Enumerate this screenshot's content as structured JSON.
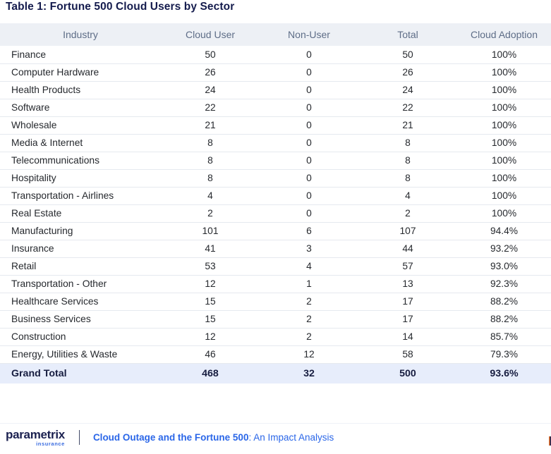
{
  "page_title": "Table 1: Fortune 500 Cloud Users by Sector",
  "table": {
    "columns": [
      "Industry",
      "Cloud User",
      "Non-User",
      "Total",
      "Cloud Adoption"
    ],
    "column_keys": [
      "industry",
      "cloud-user",
      "non-user",
      "total",
      "cloud-adoption"
    ],
    "rows": [
      [
        "Finance",
        "50",
        "0",
        "50",
        "100%"
      ],
      [
        "Computer Hardware",
        "26",
        "0",
        "26",
        "100%"
      ],
      [
        "Health Products",
        "24",
        "0",
        "24",
        "100%"
      ],
      [
        "Software",
        "22",
        "0",
        "22",
        "100%"
      ],
      [
        "Wholesale",
        "21",
        "0",
        "21",
        "100%"
      ],
      [
        "Media & Internet",
        "8",
        "0",
        "8",
        "100%"
      ],
      [
        "Telecommunications",
        "8",
        "0",
        "8",
        "100%"
      ],
      [
        "Hospitality",
        "8",
        "0",
        "8",
        "100%"
      ],
      [
        "Transportation - Airlines",
        "4",
        "0",
        "4",
        "100%"
      ],
      [
        "Real Estate",
        "2",
        "0",
        "2",
        "100%"
      ],
      [
        "Manufacturing",
        "101",
        "6",
        "107",
        "94.4%"
      ],
      [
        "Insurance",
        "41",
        "3",
        "44",
        "93.2%"
      ],
      [
        "Retail",
        "53",
        "4",
        "57",
        "93.0%"
      ],
      [
        "Transportation - Other",
        "12",
        "1",
        "13",
        "92.3%"
      ],
      [
        "Healthcare Services",
        "15",
        "2",
        "17",
        "88.2%"
      ],
      [
        "Business Services",
        "15",
        "2",
        "17",
        "88.2%"
      ],
      [
        "Construction",
        "12",
        "2",
        "14",
        "85.7%"
      ],
      [
        "Energy, Utilities & Waste",
        "46",
        "12",
        "58",
        "79.3%"
      ]
    ],
    "grand_total": [
      "Grand Total",
      "468",
      "32",
      "500",
      "93.6%"
    ]
  },
  "footer": {
    "brand": "parametrix",
    "brand_tagline": "insurance",
    "report_title_bold": "Cloud Outage and the Fortune 500",
    "report_title_rest": ": An Impact Analysis"
  },
  "colors": {
    "title_navy": "#141b4d",
    "header_bg": "#edf0f5",
    "header_text": "#5e6d87",
    "row_divider": "#e5e9ef",
    "grand_total_bg": "#e7edfb",
    "accent_blue": "#2a66e8",
    "page_marker_orange": "#e8702a"
  }
}
